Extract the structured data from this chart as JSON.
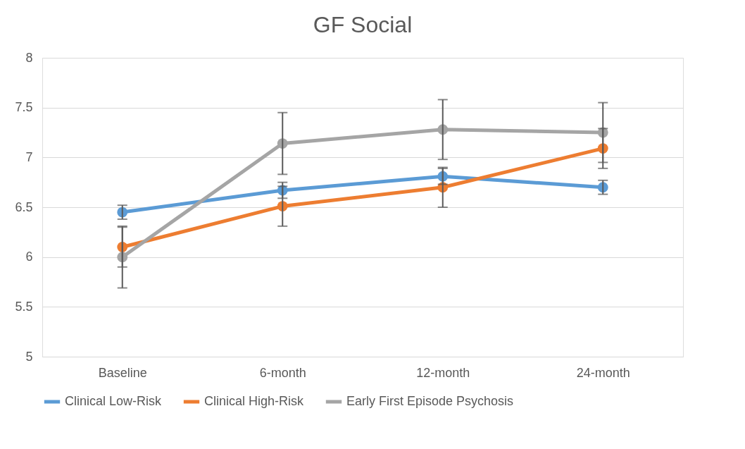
{
  "chart_data": {
    "type": "line",
    "title": "GF Social",
    "categories": [
      "Baseline",
      "6-month",
      "12-month",
      "24-month"
    ],
    "series": [
      {
        "name": "Clinical Low-Risk",
        "color": "#5b9bd5",
        "values": [
          6.45,
          6.67,
          6.81,
          6.7
        ],
        "errors": [
          0.07,
          0.08,
          0.08,
          0.07
        ]
      },
      {
        "name": "Clinical High-Risk",
        "color": "#ed7d31",
        "values": [
          6.1,
          6.51,
          6.7,
          7.09
        ],
        "errors": [
          0.2,
          0.2,
          0.2,
          0.2
        ]
      },
      {
        "name": "Early First Episode Psychosis",
        "color": "#a5a5a5",
        "values": [
          6.0,
          7.14,
          7.28,
          7.25
        ],
        "errors": [
          0.31,
          0.31,
          0.3,
          0.3
        ]
      }
    ],
    "ylim": [
      5,
      8
    ],
    "yticks": [
      {
        "value": 5,
        "label": "5"
      },
      5.5,
      {
        "value": 6,
        "label": "6"
      },
      6.5,
      {
        "value": 7,
        "label": "7"
      },
      7.5,
      {
        "value": 8,
        "label": "8"
      }
    ],
    "grid": "y",
    "legend": "bottom",
    "marker": "circle",
    "line_style": "solid"
  }
}
